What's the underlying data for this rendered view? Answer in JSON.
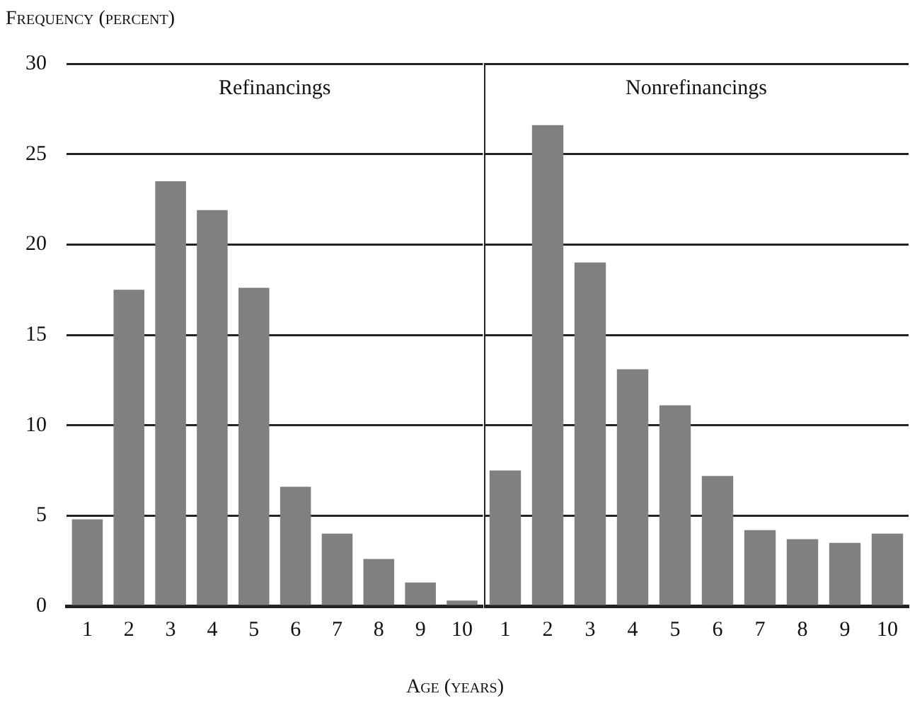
{
  "chart_data": [
    {
      "type": "bar",
      "title": "Refinancings",
      "ylabel": "Frequency (percent)",
      "xlabel": "Age (years)",
      "categories": [
        "1",
        "2",
        "3",
        "4",
        "5",
        "6",
        "7",
        "8",
        "9",
        "10"
      ],
      "values": [
        4.8,
        17.5,
        23.5,
        21.9,
        17.6,
        6.6,
        4.0,
        2.6,
        1.3,
        0.3
      ],
      "color": "#808080",
      "ylim": [
        0,
        30
      ],
      "yticks": [
        0,
        5,
        10,
        15,
        20,
        25,
        30
      ],
      "grid": "y"
    },
    {
      "type": "bar",
      "title": "Nonrefinancings",
      "categories": [
        "1",
        "2",
        "3",
        "4",
        "5",
        "6",
        "7",
        "8",
        "9",
        "10"
      ],
      "values": [
        7.5,
        26.6,
        19.0,
        13.1,
        11.1,
        7.2,
        4.2,
        3.7,
        3.5,
        4.0
      ],
      "color": "#808080",
      "ylim": [
        0,
        30
      ],
      "yticks": [
        0,
        5,
        10,
        15,
        20,
        25,
        30
      ],
      "grid": "y",
      "tick_labels": "x"
    }
  ]
}
